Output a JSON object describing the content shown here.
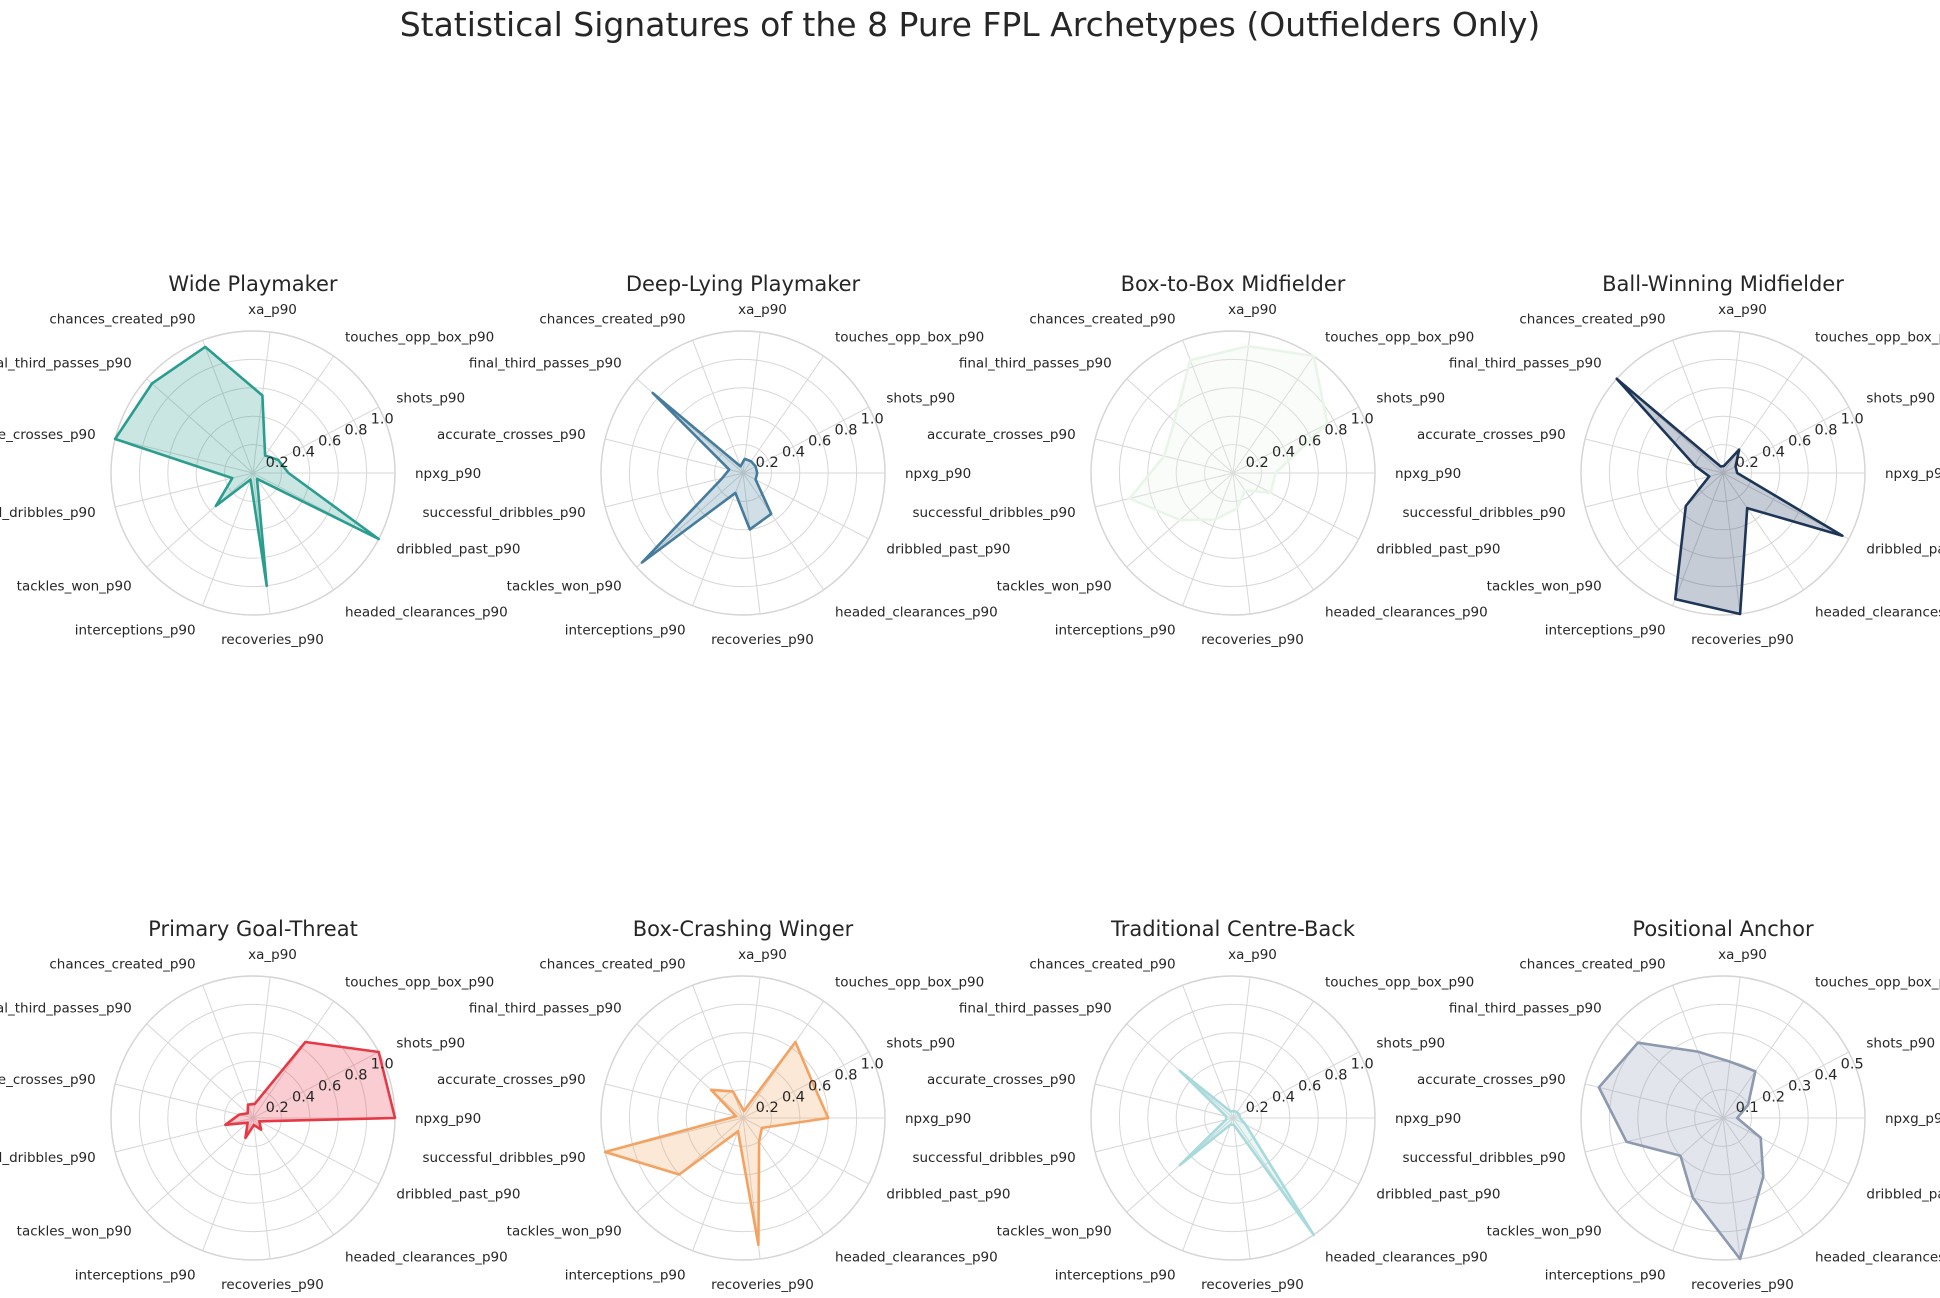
{
  "chart_data": {
    "type": "radar",
    "title": "Statistical Signatures of the 8 Pure FPL Archetypes (Outfielders Only)",
    "axes": [
      "npxg_p90",
      "shots_p90",
      "touches_opp_box_p90",
      "xa_p90",
      "chances_created_p90",
      "final_third_passes_p90",
      "accurate_crosses_p90",
      "successful_dribbles_p90",
      "tackles_won_p90",
      "interceptions_p90",
      "recoveries_p90",
      "headed_clearances_p90",
      "dribbled_past_p90"
    ],
    "grid": true,
    "panels": [
      {
        "title": "Wide Playmaker",
        "color": "#2a9d8f",
        "rmax": 1.0,
        "rticks": [
          "0.2",
          "0.4",
          "0.6",
          "0.8",
          "1.0"
        ],
        "values": [
          0.25,
          0.2,
          0.15,
          0.55,
          0.95,
          0.95,
          1.0,
          0.15,
          0.35,
          0.05,
          0.8,
          0.05,
          1.0
        ]
      },
      {
        "title": "Deep-Lying Playmaker",
        "color": "#457b9d",
        "rmax": 1.0,
        "rticks": [
          "0.2",
          "0.4",
          "0.6",
          "0.8",
          "1.0"
        ],
        "values": [
          0.1,
          0.1,
          0.1,
          0.1,
          0.05,
          0.85,
          0.1,
          0.15,
          0.95,
          0.15,
          0.4,
          0.35,
          0.1
        ]
      },
      {
        "title": "Box-to-Box Midfielder",
        "color": "#e9f5e9",
        "rmax": 1.0,
        "rticks": [
          "0.2",
          "0.4",
          "0.6",
          "0.8",
          "1.0"
        ],
        "values": [
          0.3,
          0.75,
          1.0,
          0.9,
          0.85,
          0.55,
          0.5,
          0.75,
          0.5,
          0.35,
          0.25,
          0.15,
          0.3
        ]
      },
      {
        "title": "Ball-Winning Midfielder",
        "color": "#1d3557",
        "rmax": 1.0,
        "rticks": [
          "0.2",
          "0.4",
          "0.6",
          "0.8",
          "1.0"
        ],
        "values": [
          0.1,
          0.1,
          0.2,
          0.05,
          0.05,
          1.0,
          0.2,
          0.1,
          0.35,
          0.95,
          1.0,
          0.3,
          0.95
        ]
      },
      {
        "title": "Primary Goal-Threat",
        "color": "#e63946",
        "rmax": 1.0,
        "rticks": [
          "0.2",
          "0.4",
          "0.6",
          "0.8",
          "1.0"
        ],
        "values": [
          1.0,
          1.0,
          0.65,
          0.1,
          0.1,
          0.05,
          0.1,
          0.2,
          0.05,
          0.15,
          0.05,
          0.1,
          0.05
        ]
      },
      {
        "title": "Box-Crashing Winger",
        "color": "#f4a261",
        "rmax": 1.0,
        "rticks": [
          "0.2",
          "0.4",
          "0.6",
          "0.8",
          "1.0"
        ],
        "values": [
          0.6,
          0.55,
          0.65,
          0.05,
          0.2,
          0.3,
          0.05,
          1.0,
          0.6,
          0.1,
          0.9,
          0.2,
          0.15
        ]
      },
      {
        "title": "Traditional Centre-Back",
        "color": "#a8dadc",
        "rmax": 1.0,
        "rticks": [
          "0.2",
          "0.4",
          "0.6",
          "0.8",
          "1.0"
        ],
        "values": [
          0.05,
          0.05,
          0.05,
          0.05,
          0.05,
          0.5,
          0.05,
          0.05,
          0.5,
          0.05,
          0.05,
          1.0,
          0.1
        ]
      },
      {
        "title": "Positional Anchor",
        "color": "#8d99ae",
        "rmax": 0.5,
        "rticks": [
          "0.1",
          "0.2",
          "0.3",
          "0.4",
          "0.5"
        ],
        "values": [
          0.05,
          0.1,
          0.2,
          0.2,
          0.25,
          0.4,
          0.45,
          0.35,
          0.2,
          0.3,
          0.5,
          0.25,
          0.15
        ]
      }
    ]
  }
}
